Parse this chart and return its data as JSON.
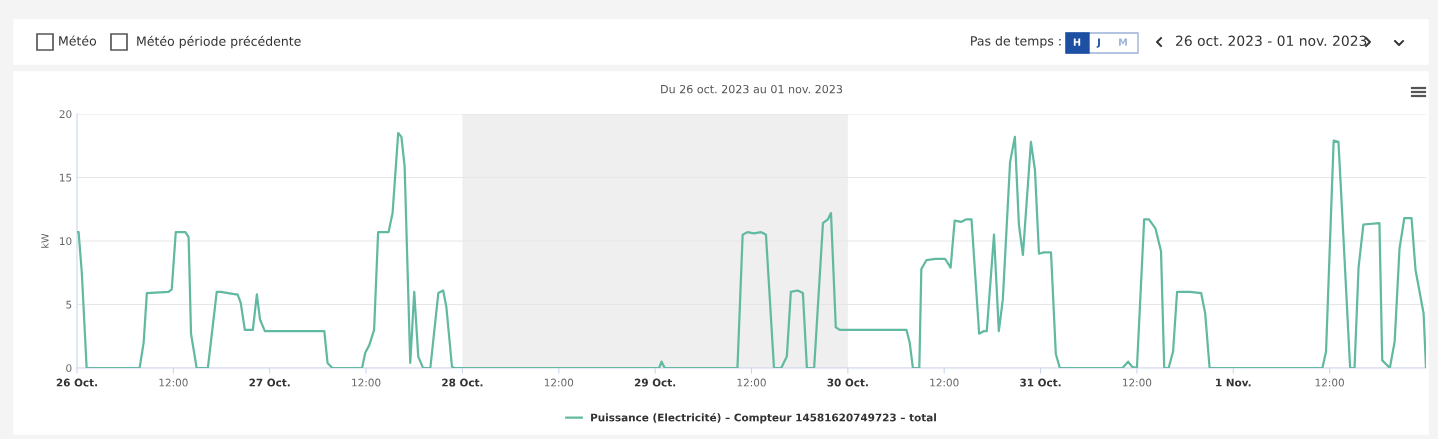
{
  "chart_data": {
    "type": "line",
    "title": "Du 26 oct. 2023 au 01 nov. 2023",
    "ylabel": "kW",
    "annotations": [
      "Météo",
      "Météo période précédente",
      "Pas de temps :",
      "H",
      "J",
      "M",
      "26 oct. 2023 - 01 nov. 2023"
    ],
    "xlim": [
      "2023-10-26T00:00",
      "2023-11-02T00:00"
    ],
    "ylim": [
      0,
      20
    ],
    "yticks": [
      0,
      5,
      10,
      15,
      20
    ],
    "xticks": [
      {
        "value": "2023-10-26T00:00",
        "label": "26 Oct."
      },
      {
        "value": "2023-10-26T12:00",
        "label": "12:00"
      },
      {
        "value": "2023-10-27T00:00",
        "label": "27 Oct."
      },
      {
        "value": "2023-10-27T12:00",
        "label": "12:00"
      },
      {
        "value": "2023-10-28T00:00",
        "label": "28 Oct."
      },
      {
        "value": "2023-10-28T12:00",
        "label": "12:00"
      },
      {
        "value": "2023-10-29T00:00",
        "label": "29 Oct."
      },
      {
        "value": "2023-10-29T12:00",
        "label": "12:00"
      },
      {
        "value": "2023-10-30T00:00",
        "label": "30 Oct."
      },
      {
        "value": "2023-10-30T12:00",
        "label": "12:00"
      },
      {
        "value": "2023-10-31T00:00",
        "label": "31 Oct."
      },
      {
        "value": "2023-10-31T12:00",
        "label": "12:00"
      },
      {
        "value": "2023-11-01T00:00",
        "label": "1 Nov."
      },
      {
        "value": "2023-11-01T12:00",
        "label": "12:00"
      }
    ],
    "grid": "y",
    "legend": "bottom",
    "marker": "none",
    "line_style": "solid",
    "bands": [
      {
        "axis": "x",
        "from": "2023-10-28T00:00",
        "to": "2023-10-30T00:00",
        "color": "#eeefee"
      }
    ],
    "series": [
      {
        "name": "Puissance (Electricité) – Compteur 14581620749723 – total",
        "color": "#62b9a1",
        "x": [
          "2023-10-26T00:00",
          "2023-10-26T00:12",
          "2023-10-26T00:36",
          "2023-10-26T01:12",
          "2023-10-26T07:48",
          "2023-10-26T08:18",
          "2023-10-26T08:42",
          "2023-10-26T11:24",
          "2023-10-26T11:48",
          "2023-10-26T12:18",
          "2023-10-26T13:30",
          "2023-10-26T13:54",
          "2023-10-26T14:12",
          "2023-10-26T14:54",
          "2023-10-26T16:18",
          "2023-10-26T17:24",
          "2023-10-26T17:54",
          "2023-10-26T19:45",
          "2023-10-26T20:00",
          "2023-10-26T20:24",
          "2023-10-26T20:54",
          "2023-10-26T21:54",
          "2023-10-26T22:24",
          "2023-10-26T22:48",
          "2023-10-26T23:24",
          "2023-10-27T06:48",
          "2023-10-27T07:12",
          "2023-10-27T07:48",
          "2023-10-27T11:30",
          "2023-10-27T11:54",
          "2023-10-27T12:24",
          "2023-10-27T13:00",
          "2023-10-27T13:30",
          "2023-10-27T14:48",
          "2023-10-27T15:18",
          "2023-10-27T16:00",
          "2023-10-27T16:24",
          "2023-10-27T16:48",
          "2023-10-27T17:30",
          "2023-10-27T18:00",
          "2023-10-27T18:30",
          "2023-10-27T19:06",
          "2023-10-27T20:00",
          "2023-10-27T21:00",
          "2023-10-27T21:36",
          "2023-10-27T22:00",
          "2023-10-27T22:42",
          "2023-10-27T23:00",
          "2023-10-29T00:30",
          "2023-10-29T00:48",
          "2023-10-29T01:12",
          "2023-10-29T10:15",
          "2023-10-29T10:54",
          "2023-10-29T11:30",
          "2023-10-29T12:18",
          "2023-10-29T13:12",
          "2023-10-29T13:48",
          "2023-10-29T14:48",
          "2023-10-29T15:42",
          "2023-10-29T16:24",
          "2023-10-29T16:54",
          "2023-10-29T17:45",
          "2023-10-29T18:24",
          "2023-10-29T18:54",
          "2023-10-29T19:48",
          "2023-10-29T20:54",
          "2023-10-29T21:30",
          "2023-10-29T21:54",
          "2023-10-29T22:30",
          "2023-10-29T23:00",
          "2023-10-30T07:18",
          "2023-10-30T07:42",
          "2023-10-30T08:06",
          "2023-10-30T08:54",
          "2023-10-30T09:09",
          "2023-10-30T09:48",
          "2023-10-30T10:54",
          "2023-10-30T12:06",
          "2023-10-30T12:48",
          "2023-10-30T13:18",
          "2023-10-30T14:06",
          "2023-10-30T14:42",
          "2023-10-30T15:24",
          "2023-10-30T16:21",
          "2023-10-30T16:54",
          "2023-10-30T17:18",
          "2023-10-30T18:12",
          "2023-10-30T18:48",
          "2023-10-30T19:18",
          "2023-10-30T20:12",
          "2023-10-30T20:48",
          "2023-10-30T21:18",
          "2023-10-30T21:48",
          "2023-10-30T22:48",
          "2023-10-30T23:18",
          "2023-10-30T23:48",
          "2023-10-31T00:24",
          "2023-10-31T01:18",
          "2023-10-31T01:54",
          "2023-10-31T02:24",
          "2023-10-31T10:12",
          "2023-10-31T10:54",
          "2023-10-31T11:24",
          "2023-10-31T12:00",
          "2023-10-31T12:54",
          "2023-10-31T13:30",
          "2023-10-31T14:18",
          "2023-10-31T15:00",
          "2023-10-31T15:24",
          "2023-10-31T15:57",
          "2023-10-31T16:30",
          "2023-10-31T17:00",
          "2023-10-31T18:36",
          "2023-10-31T20:00",
          "2023-10-31T20:30",
          "2023-10-31T21:03",
          "2023-11-01T11:06",
          "2023-11-01T11:33",
          "2023-11-01T12:30",
          "2023-11-01T13:06",
          "2023-11-01T13:42",
          "2023-11-01T14:33",
          "2023-11-01T15:06",
          "2023-11-01T15:36",
          "2023-11-01T16:12",
          "2023-11-01T18:12",
          "2023-11-01T18:33",
          "2023-11-01T19:30",
          "2023-11-01T20:06",
          "2023-11-01T20:42",
          "2023-11-01T21:18",
          "2023-11-01T22:12",
          "2023-11-01T22:42",
          "2023-11-01T23:42",
          "2023-11-02T00:00"
        ],
        "values": [
          10.7,
          10.7,
          7.5,
          0,
          0,
          2.0,
          5.9,
          6.0,
          6.2,
          10.7,
          10.7,
          10.3,
          2.7,
          0,
          0,
          6.0,
          6.0,
          5.8,
          5.8,
          5.1,
          3.0,
          3.0,
          5.8,
          3.8,
          2.9,
          2.9,
          0.4,
          0,
          0,
          1.2,
          1.8,
          3.0,
          10.7,
          10.7,
          12.2,
          18.5,
          18.2,
          15.9,
          0.4,
          6.0,
          0.9,
          0,
          0,
          5.9,
          6.1,
          4.8,
          0.1,
          0,
          0,
          0.5,
          0,
          0,
          10.5,
          10.7,
          10.6,
          10.7,
          10.5,
          0,
          0,
          0.9,
          6.0,
          6.1,
          5.9,
          0,
          0,
          11.4,
          11.7,
          12.2,
          3.2,
          3.0,
          3.0,
          2.0,
          0,
          0,
          7.8,
          8.5,
          8.6,
          8.6,
          7.9,
          11.6,
          11.5,
          11.7,
          11.7,
          2.7,
          2.9,
          2.9,
          10.5,
          2.9,
          5.4,
          16.2,
          18.2,
          11.3,
          8.9,
          17.8,
          15.6,
          9.0,
          9.1,
          9.1,
          1.1,
          0,
          0,
          0.5,
          0.1,
          0,
          11.7,
          11.7,
          11.0,
          9.2,
          0,
          0,
          1.3,
          6.0,
          6.0,
          5.9,
          4.3,
          0,
          0,
          1.3,
          17.9,
          17.8,
          10.5,
          0,
          0,
          7.9,
          11.3,
          11.4,
          0.6,
          0,
          2.1,
          9.4,
          11.8,
          11.8,
          7.7,
          4.3,
          0
        ]
      }
    ]
  }
}
